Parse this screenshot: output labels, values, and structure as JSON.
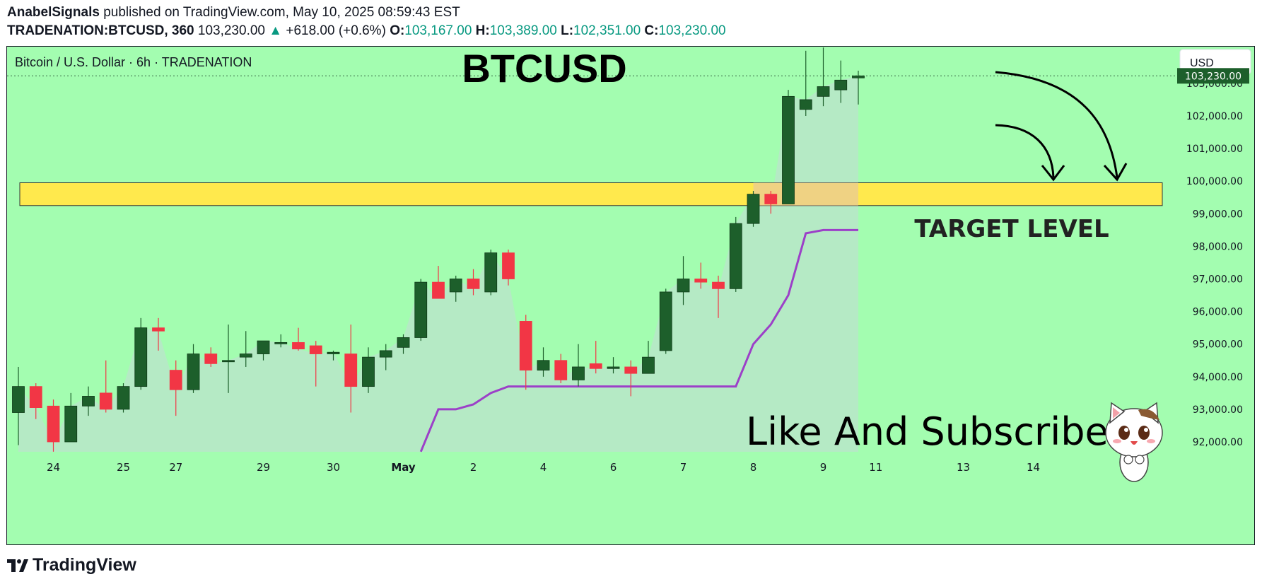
{
  "header": {
    "author": "AnabelSignals",
    "published_text": "published on TradingView.com, May 10, 2025 08:59:43 EST",
    "symbol": "TRADENATION:BTCUSD, 360",
    "last": "103,230.00",
    "change": "+618.00 (+0.6%)",
    "o_label": "O:",
    "o_value": "103,167.00",
    "h_label": "H:",
    "h_value": "103,389.00",
    "l_label": "L:",
    "l_value": "102,351.00",
    "c_label": "C:",
    "c_value": "103,230.00"
  },
  "legend": {
    "series_name": "Bitcoin / U.S. Dollar · 6h · TRADENATION"
  },
  "currency_button": "USD",
  "annotations": {
    "title": "BTCUSD",
    "target": "TARGET LEVEL",
    "cta": "Like And Subscribe"
  },
  "footer": {
    "brand": "TradingView"
  },
  "colors": {
    "background": "#a3fdb0",
    "bull": "#1d5f2b",
    "bear": "#f23645",
    "area": "#b9e6c9",
    "zone": "#ffe94d",
    "support_line": "#9c40c8",
    "price_tag": "#1d5f2b"
  },
  "chart_data": {
    "type": "candlestick",
    "title": "BTCUSD",
    "ylim": [
      91700,
      104300
    ],
    "y_ticks": [
      92000,
      93000,
      94000,
      95000,
      96000,
      97000,
      98000,
      99000,
      100000,
      101000,
      102000,
      103000
    ],
    "y_tick_labels": [
      "92,000.00",
      "93,000.00",
      "94,000.00",
      "95,000.00",
      "96,000.00",
      "97,000.00",
      "98,000.00",
      "99,000.00",
      "100,000.00",
      "101,000.00",
      "102,000.00",
      "103,000.00"
    ],
    "x_ticks": [
      {
        "label": "24",
        "index": 2
      },
      {
        "label": "25",
        "index": 6
      },
      {
        "label": "27",
        "index": 9
      },
      {
        "label": "29",
        "index": 14
      },
      {
        "label": "30",
        "index": 18
      },
      {
        "label": "May",
        "index": 22
      },
      {
        "label": "2",
        "index": 26
      },
      {
        "label": "4",
        "index": 30
      },
      {
        "label": "6",
        "index": 34
      },
      {
        "label": "7",
        "index": 38
      },
      {
        "label": "8",
        "index": 42
      },
      {
        "label": "9",
        "index": 46
      },
      {
        "label": "11",
        "index": 49
      },
      {
        "label": "13",
        "index": 54
      },
      {
        "label": "14",
        "index": 58
      }
    ],
    "last_price": 103230,
    "last_price_label": "103,230.00",
    "target_zone": [
      99250,
      99950
    ],
    "candles": [
      {
        "o": 92900,
        "h": 94300,
        "l": 91900,
        "c": 93700
      },
      {
        "o": 93700,
        "h": 93800,
        "l": 92700,
        "c": 93050
      },
      {
        "o": 93100,
        "h": 93300,
        "l": 91700,
        "c": 92000
      },
      {
        "o": 92000,
        "h": 93500,
        "l": 92000,
        "c": 93100
      },
      {
        "o": 93100,
        "h": 93700,
        "l": 92800,
        "c": 93400
      },
      {
        "o": 93500,
        "h": 94500,
        "l": 92900,
        "c": 93000
      },
      {
        "o": 93000,
        "h": 93800,
        "l": 92900,
        "c": 93700
      },
      {
        "o": 93700,
        "h": 95800,
        "l": 93600,
        "c": 95500
      },
      {
        "o": 95500,
        "h": 95800,
        "l": 94800,
        "c": 95400
      },
      {
        "o": 94200,
        "h": 94500,
        "l": 92800,
        "c": 93600
      },
      {
        "o": 93600,
        "h": 95000,
        "l": 93500,
        "c": 94700
      },
      {
        "o": 94700,
        "h": 94900,
        "l": 94300,
        "c": 94400
      },
      {
        "o": 94500,
        "h": 95600,
        "l": 93500,
        "c": 94500
      },
      {
        "o": 94600,
        "h": 95400,
        "l": 94300,
        "c": 94700
      },
      {
        "o": 94700,
        "h": 95100,
        "l": 94500,
        "c": 95100
      },
      {
        "o": 95050,
        "h": 95300,
        "l": 94900,
        "c": 95050
      },
      {
        "o": 95050,
        "h": 95500,
        "l": 94800,
        "c": 94850
      },
      {
        "o": 94950,
        "h": 95100,
        "l": 93700,
        "c": 94700
      },
      {
        "o": 94700,
        "h": 94800,
        "l": 94500,
        "c": 94750
      },
      {
        "o": 94700,
        "h": 95600,
        "l": 92900,
        "c": 93700
      },
      {
        "o": 93700,
        "h": 94900,
        "l": 93500,
        "c": 94600
      },
      {
        "o": 94600,
        "h": 95000,
        "l": 94200,
        "c": 94800
      },
      {
        "o": 94900,
        "h": 95300,
        "l": 94700,
        "c": 95200
      },
      {
        "o": 95200,
        "h": 97000,
        "l": 95100,
        "c": 96900
      },
      {
        "o": 96900,
        "h": 97400,
        "l": 96400,
        "c": 96400
      },
      {
        "o": 96600,
        "h": 97100,
        "l": 96300,
        "c": 97000
      },
      {
        "o": 97000,
        "h": 97300,
        "l": 96500,
        "c": 96700
      },
      {
        "o": 96600,
        "h": 97900,
        "l": 96500,
        "c": 97800
      },
      {
        "o": 97800,
        "h": 97900,
        "l": 96800,
        "c": 97000
      },
      {
        "o": 95700,
        "h": 95900,
        "l": 93600,
        "c": 94200
      },
      {
        "o": 94200,
        "h": 94900,
        "l": 94000,
        "c": 94500
      },
      {
        "o": 94500,
        "h": 94700,
        "l": 93800,
        "c": 93900
      },
      {
        "o": 93900,
        "h": 95000,
        "l": 93700,
        "c": 94300
      },
      {
        "o": 94400,
        "h": 95100,
        "l": 94100,
        "c": 94250
      },
      {
        "o": 94250,
        "h": 94600,
        "l": 94100,
        "c": 94300
      },
      {
        "o": 94300,
        "h": 94500,
        "l": 93400,
        "c": 94100
      },
      {
        "o": 94100,
        "h": 95100,
        "l": 94100,
        "c": 94600
      },
      {
        "o": 94800,
        "h": 96700,
        "l": 94700,
        "c": 96600
      },
      {
        "o": 96600,
        "h": 97700,
        "l": 96200,
        "c": 97000
      },
      {
        "o": 97000,
        "h": 97500,
        "l": 96700,
        "c": 96900
      },
      {
        "o": 96900,
        "h": 97100,
        "l": 95800,
        "c": 96700
      },
      {
        "o": 96700,
        "h": 98900,
        "l": 96600,
        "c": 98700
      },
      {
        "o": 98700,
        "h": 99700,
        "l": 98600,
        "c": 99600
      },
      {
        "o": 99600,
        "h": 99700,
        "l": 99000,
        "c": 99300
      },
      {
        "o": 99300,
        "h": 102800,
        "l": 99300,
        "c": 102600
      },
      {
        "o": 102200,
        "h": 104000,
        "l": 102000,
        "c": 102500
      },
      {
        "o": 102600,
        "h": 104100,
        "l": 102300,
        "c": 102900
      },
      {
        "o": 102800,
        "h": 103700,
        "l": 102400,
        "c": 103100
      },
      {
        "o": 103167,
        "h": 103389,
        "l": 102351,
        "c": 103230
      }
    ],
    "support_line": [
      [
        23,
        91700
      ],
      [
        24,
        93000
      ],
      [
        25,
        93000
      ],
      [
        26,
        93150
      ],
      [
        27,
        93500
      ],
      [
        28,
        93700
      ],
      [
        29,
        93700
      ],
      [
        30,
        93700
      ],
      [
        31,
        93700
      ],
      [
        32,
        93700
      ],
      [
        33,
        93700
      ],
      [
        34,
        93700
      ],
      [
        35,
        93700
      ],
      [
        36,
        93700
      ],
      [
        37,
        93700
      ],
      [
        38,
        93700
      ],
      [
        39,
        93700
      ],
      [
        40,
        93700
      ],
      [
        41,
        93700
      ],
      [
        42,
        95000
      ],
      [
        43,
        95600
      ],
      [
        44,
        96500
      ],
      [
        45,
        98400
      ],
      [
        46,
        98500
      ],
      [
        47,
        98500
      ],
      [
        48,
        98500
      ]
    ]
  }
}
